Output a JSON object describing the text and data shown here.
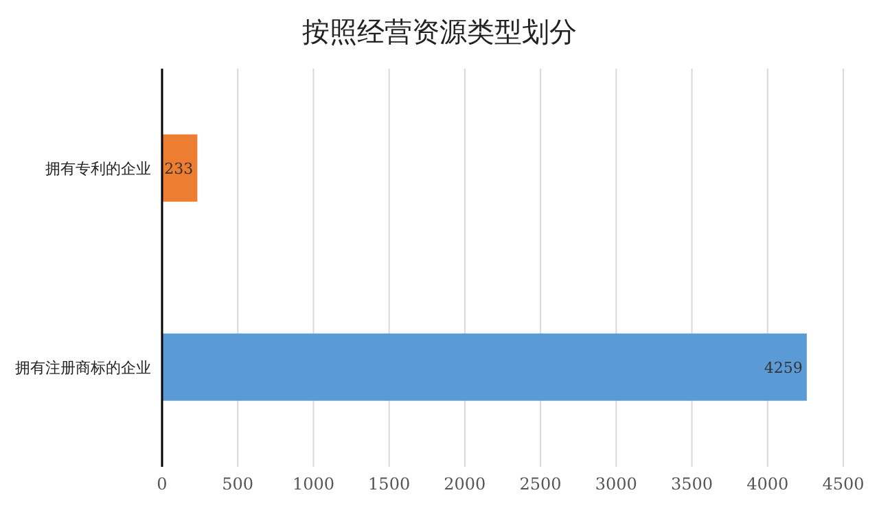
{
  "chart_data": {
    "type": "bar",
    "orientation": "horizontal",
    "title": "按照经营资源类型划分",
    "categories": [
      "拥有专利的企业",
      "拥有注册商标的企业"
    ],
    "values": [
      233,
      4259
    ],
    "colors": [
      "#ed7d31",
      "#5b9bd5"
    ],
    "xlim": [
      0,
      4500
    ],
    "xticks": [
      0,
      500,
      1000,
      1500,
      2000,
      2500,
      3000,
      3500,
      4000,
      4500
    ],
    "grid": "x",
    "data_labels": true
  }
}
